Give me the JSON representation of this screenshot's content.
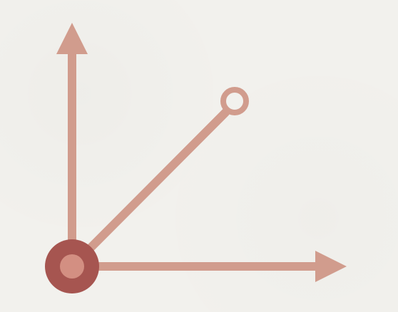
{
  "diagram": {
    "colors": {
      "background": "#f2f1ed",
      "axis": "#d19c8d",
      "vector": "#d19c8d",
      "origin_outer": "#a65550",
      "origin_inner": "#d38f82",
      "endpoint_fill": "#f2f1ed"
    },
    "icons": {
      "origin": "filled-circle",
      "vector_end": "hollow-circle",
      "axis_heads": "arrowhead"
    }
  }
}
